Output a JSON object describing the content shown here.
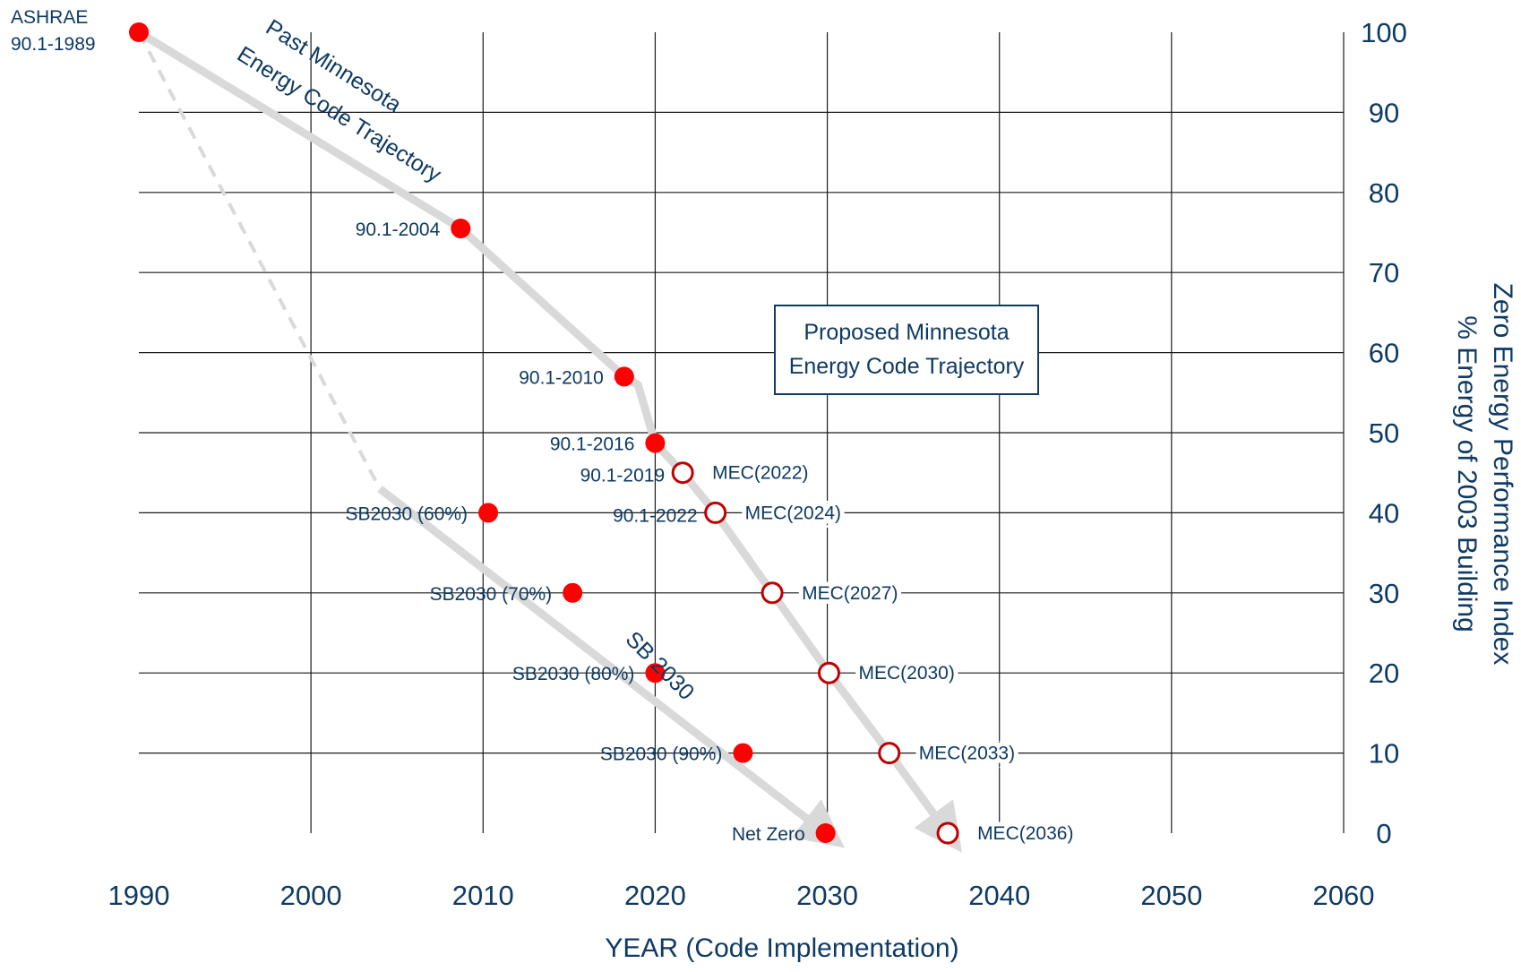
{
  "chart_data": {
    "type": "scatter",
    "title": "",
    "xlabel": "YEAR (Code Implementation)",
    "ylabel_lines": [
      "Zero Energy Performance Index",
      "% Energy of 2003 Building"
    ],
    "xlim": [
      1990,
      2060
    ],
    "ylim": [
      0,
      100
    ],
    "x_ticks": [
      1990,
      2000,
      2010,
      2020,
      2030,
      2040,
      2050,
      2060
    ],
    "y_ticks": [
      0,
      10,
      20,
      30,
      40,
      50,
      60,
      70,
      80,
      90,
      100
    ],
    "y_axis_side": "right",
    "grid": true,
    "colors": {
      "axis_text": "#0e3a63",
      "point_fill": "#ff0000",
      "open_point_stroke": "#c00000",
      "trajectory": "#d9d9d9",
      "grid": "#1a1a1a"
    },
    "series": [
      {
        "kind": "filled",
        "points": [
          {
            "x": 1990,
            "y": 100,
            "label": "ASHRAE\n90.1-1989"
          },
          {
            "x": 2008.7,
            "y": 75.5,
            "label": "90.1-2004"
          },
          {
            "x": 2018.2,
            "y": 57,
            "label": "90.1-2010"
          },
          {
            "x": 2020,
            "y": 48.7,
            "label": "90.1-2016"
          },
          {
            "x": 2010.3,
            "y": 40,
            "label": "SB2030 (60%)"
          },
          {
            "x": 2015.2,
            "y": 30,
            "label": "SB2030 (70%)"
          },
          {
            "x": 2020,
            "y": 20,
            "label": "SB2030 (80%)"
          },
          {
            "x": 2025.1,
            "y": 10,
            "label": "SB2030 (90%)"
          },
          {
            "x": 2029.9,
            "y": 0,
            "label": "Net Zero"
          }
        ]
      },
      {
        "kind": "open",
        "points": [
          {
            "x": 2021.6,
            "y": 45,
            "label": "MEC(2022)",
            "label2": "90.1-2019"
          },
          {
            "x": 2023.5,
            "y": 40,
            "label": "MEC(2024)",
            "label2": "90.1-2022"
          },
          {
            "x": 2026.8,
            "y": 30,
            "label": "MEC(2027)"
          },
          {
            "x": 2030.1,
            "y": 20,
            "label": "MEC(2030)"
          },
          {
            "x": 2033.6,
            "y": 10,
            "label": "MEC(2033)"
          },
          {
            "x": 2037,
            "y": 0,
            "label": "MEC(2036)"
          }
        ]
      }
    ],
    "trajectories": [
      {
        "name": "Past Minnesota Energy Code Trajectory",
        "style": "solid",
        "points": [
          [
            1990,
            100
          ],
          [
            2008.7,
            75.5
          ],
          [
            2018.2,
            57
          ],
          [
            2019,
            56
          ],
          [
            2020,
            48.7
          ],
          [
            2021.6,
            45
          ],
          [
            2023.5,
            40
          ],
          [
            2026.8,
            30
          ],
          [
            2030.1,
            20
          ],
          [
            2033.6,
            10
          ],
          [
            2037,
            0
          ]
        ],
        "arrow_end": true
      },
      {
        "name": "SB 2030",
        "style": "dashed",
        "points": [
          [
            1990,
            100
          ],
          [
            2004,
            43
          ]
        ]
      },
      {
        "name": "SB 2030",
        "style": "solid",
        "points": [
          [
            2004,
            43
          ],
          [
            2029.9,
            0
          ]
        ],
        "arrow_end": true
      }
    ],
    "annotations": {
      "past_trajectory": [
        "Past Minnesota",
        "Energy Code Trajectory"
      ],
      "proposed_box": [
        "Proposed Minnesota",
        "Energy Code Trajectory"
      ],
      "sb2030": "SB 2030"
    }
  }
}
